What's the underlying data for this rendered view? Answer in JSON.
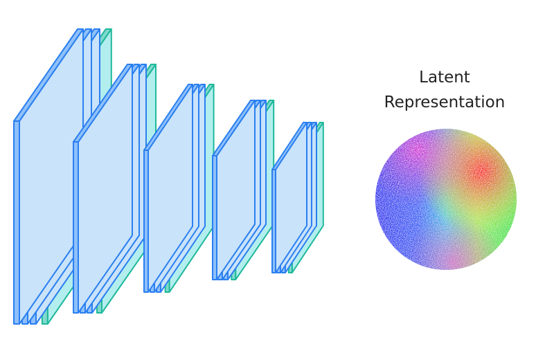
{
  "label": "Latent Representation"
}
